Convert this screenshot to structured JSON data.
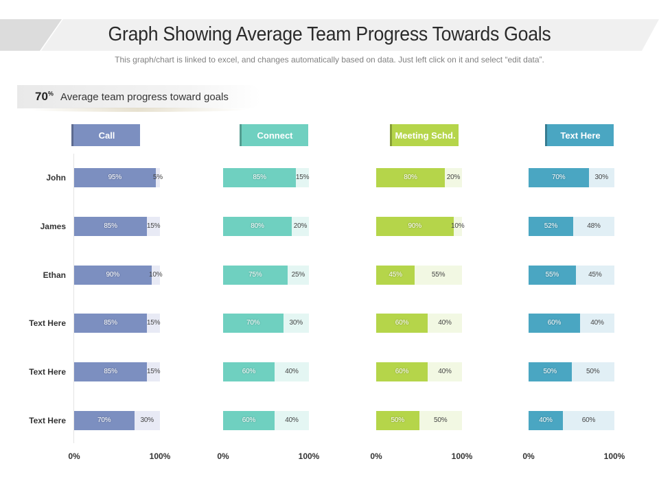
{
  "header": {
    "title": "Graph Showing Average Team Progress Towards Goals",
    "subtitle": "This graph/chart is linked to excel, and changes automatically based on data. Just left click on it and select “edit data”."
  },
  "summary": {
    "value": "70",
    "unit": "%",
    "label": "Average team progress toward goals"
  },
  "colors": {
    "call": "#7c8fc0",
    "call_rem": "#e8eaf5",
    "connect": "#6fd0c0",
    "connect_rem": "#e4f6f3",
    "meeting": "#b5d54a",
    "meeting_rem": "#f2f8e3",
    "text": "#4aa6c2",
    "text_rem": "#e1eff5",
    "title_band": "#e6e6e6"
  },
  "chart_data": {
    "type": "bar",
    "title": "Graph Showing Average Team Progress Towards Goals",
    "orientation": "horizontal",
    "stacked": true,
    "xlim": [
      0,
      100
    ],
    "tick_labels": [
      "0%",
      "100%"
    ],
    "rows": [
      "John",
      "James",
      "Ethan",
      "Text Here",
      "Text Here",
      "Text Here"
    ],
    "panels": [
      {
        "name": "Call",
        "color_key": "call",
        "values": [
          95,
          85,
          90,
          85,
          85,
          70
        ],
        "remaining": [
          5,
          15,
          10,
          15,
          15,
          30
        ]
      },
      {
        "name": "Connect",
        "color_key": "connect",
        "values": [
          85,
          80,
          75,
          70,
          60,
          60
        ],
        "remaining": [
          15,
          20,
          25,
          30,
          40,
          40
        ]
      },
      {
        "name": "Meeting Schd.",
        "color_key": "meeting",
        "values": [
          80,
          90,
          45,
          60,
          60,
          50
        ],
        "remaining": [
          20,
          10,
          55,
          40,
          40,
          50
        ]
      },
      {
        "name": "Text Here",
        "color_key": "text",
        "values": [
          70,
          52,
          55,
          60,
          50,
          40
        ],
        "remaining": [
          30,
          48,
          45,
          40,
          50,
          60
        ]
      }
    ]
  }
}
